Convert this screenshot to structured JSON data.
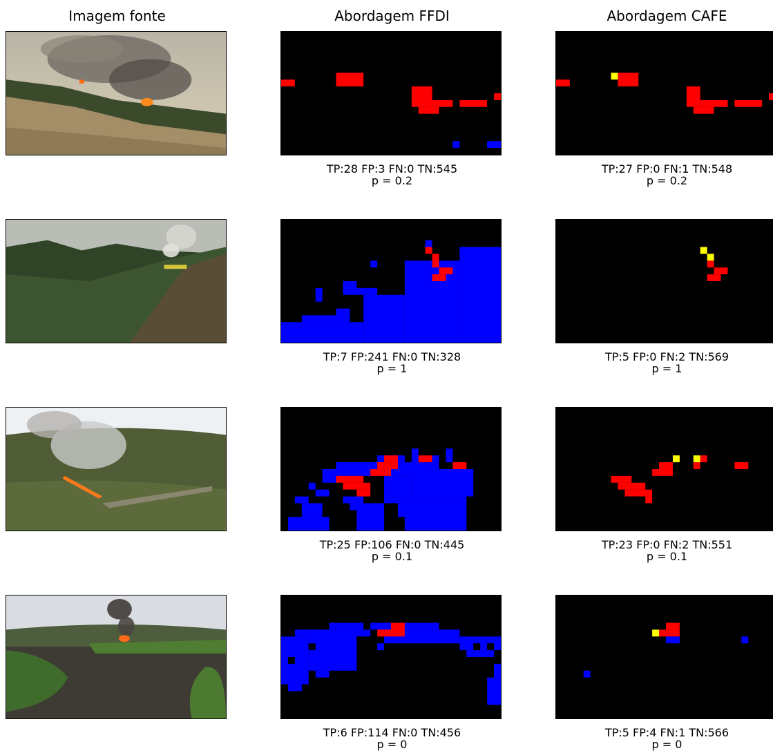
{
  "columns": [
    "Imagem fonte",
    "Abordagem FFDI",
    "Abordagem CAFE"
  ],
  "colors": {
    "tp": "#ff0000",
    "fp": "#0000ff",
    "fn": "#ffff00",
    "background": "#000000"
  },
  "rows": [
    {
      "ffdi": {
        "stats": "TP:28 FP:3 FN:0 TN:545",
        "p": "p = 0.2"
      },
      "cafe": {
        "stats": "TP:27 FP:0 FN:1 TN:548",
        "p": "p = 0.2"
      }
    },
    {
      "ffdi": {
        "stats": "TP:7 FP:241 FN:0 TN:328",
        "p": "p = 1"
      },
      "cafe": {
        "stats": "TP:5 FP:0 FN:2 TN:569",
        "p": "p = 1"
      }
    },
    {
      "ffdi": {
        "stats": "TP:25 FP:106 FN:0 TN:445",
        "p": "p = 0.1"
      },
      "cafe": {
        "stats": "TP:23 FP:0 FN:2 TN:551",
        "p": "p = 0.1"
      }
    },
    {
      "ffdi": {
        "stats": "TP:6 FP:114 FN:0 TN:456",
        "p": "p = 0"
      },
      "cafe": {
        "stats": "TP:5 FP:4 FN:1 TN:566",
        "p": "p = 0"
      }
    }
  ]
}
